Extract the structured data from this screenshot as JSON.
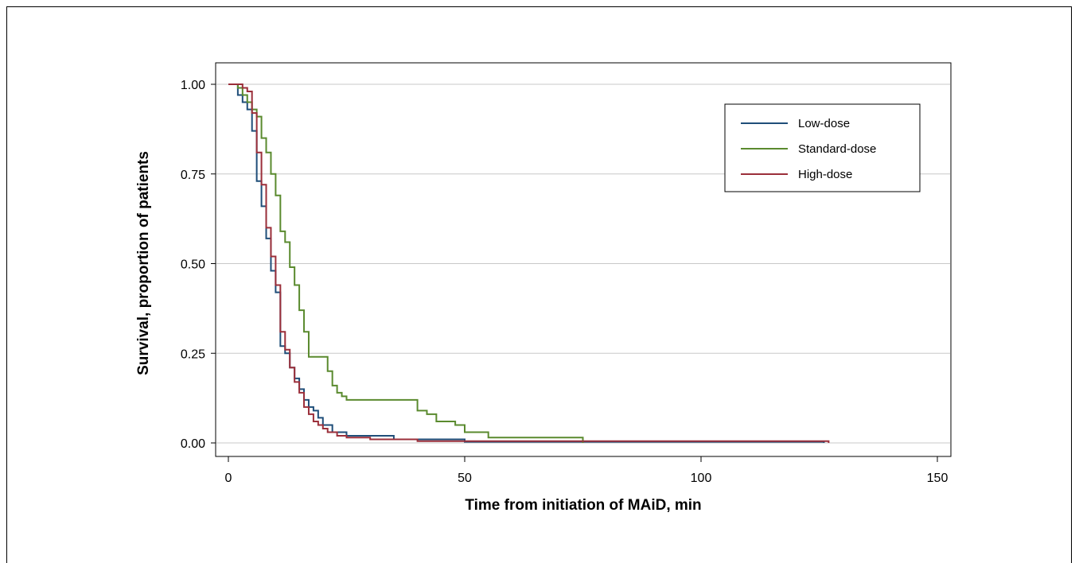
{
  "chart_data": {
    "type": "line",
    "step": true,
    "xlabel": "Time from initiation of MAiD, min",
    "ylabel": "Survival, proportion of patients",
    "xlim": [
      0,
      150
    ],
    "ylim": [
      0,
      1
    ],
    "xticks": [
      "0",
      "50",
      "100",
      "150"
    ],
    "yticks": [
      "0.00",
      "0.25",
      "0.50",
      "0.75",
      "1.00"
    ],
    "grid": "horizontal",
    "legend_position": "top-right",
    "series": [
      {
        "name": "Low-dose",
        "color": "#1f4e79",
        "x": [
          0,
          2,
          3,
          4,
          5,
          6,
          7,
          8,
          9,
          10,
          11,
          12,
          13,
          14,
          15,
          16,
          17,
          18,
          19,
          20,
          22,
          25,
          35,
          50,
          126
        ],
        "y": [
          1.0,
          0.97,
          0.95,
          0.93,
          0.87,
          0.73,
          0.66,
          0.57,
          0.48,
          0.42,
          0.27,
          0.25,
          0.21,
          0.18,
          0.15,
          0.12,
          0.1,
          0.09,
          0.07,
          0.05,
          0.03,
          0.02,
          0.01,
          0.003,
          0.0
        ]
      },
      {
        "name": "Standard-dose",
        "color": "#5a8a2e",
        "x": [
          0,
          2,
          3,
          4,
          5,
          6,
          7,
          8,
          9,
          10,
          11,
          12,
          13,
          14,
          15,
          16,
          17,
          21,
          22,
          23,
          24,
          25,
          40,
          42,
          44,
          48,
          50,
          55,
          75
        ],
        "y": [
          1.0,
          0.99,
          0.97,
          0.95,
          0.93,
          0.91,
          0.85,
          0.81,
          0.75,
          0.69,
          0.59,
          0.56,
          0.49,
          0.44,
          0.37,
          0.31,
          0.24,
          0.2,
          0.16,
          0.14,
          0.13,
          0.12,
          0.09,
          0.08,
          0.06,
          0.05,
          0.03,
          0.015,
          0.0
        ]
      },
      {
        "name": "High-dose",
        "color": "#9b2f3a",
        "x": [
          0,
          3,
          4,
          5,
          6,
          7,
          8,
          9,
          10,
          11,
          12,
          13,
          14,
          15,
          16,
          17,
          18,
          19,
          20,
          21,
          23,
          25,
          30,
          40,
          127
        ],
        "y": [
          1.0,
          0.99,
          0.98,
          0.92,
          0.81,
          0.72,
          0.6,
          0.52,
          0.44,
          0.31,
          0.26,
          0.21,
          0.17,
          0.14,
          0.1,
          0.08,
          0.06,
          0.05,
          0.04,
          0.03,
          0.02,
          0.015,
          0.01,
          0.005,
          0.0
        ]
      }
    ]
  }
}
